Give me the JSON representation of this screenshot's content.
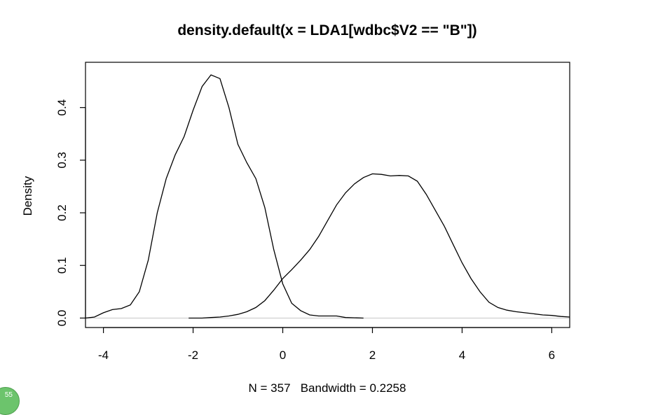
{
  "chart_data": {
    "type": "line",
    "title": "density.default(x = LDA1[wdbc$V2 == \"B\"])",
    "xlabel": "N = 357   Bandwidth = 0.2258",
    "ylabel": "Density",
    "xlim": [
      -4.4,
      6.4
    ],
    "ylim": [
      -0.018,
      0.486
    ],
    "x_ticks": [
      -4,
      -2,
      0,
      2,
      4,
      6
    ],
    "y_ticks": [
      0.0,
      0.1,
      0.2,
      0.3,
      0.4
    ],
    "x_tick_labels": [
      "-4",
      "-2",
      "0",
      "2",
      "4",
      "6"
    ],
    "y_tick_labels": [
      "0.0",
      "0.1",
      "0.2",
      "0.3",
      "0.4"
    ],
    "zero_line": true,
    "grid": false,
    "series": [
      {
        "x": [
          -4.4,
          -4.2,
          -4.0,
          -3.8,
          -3.6,
          -3.4,
          -3.2,
          -3.0,
          -2.8,
          -2.6,
          -2.4,
          -2.2,
          -2.0,
          -1.8,
          -1.6,
          -1.4,
          -1.2,
          -1.0,
          -0.8,
          -0.6,
          -0.4,
          -0.2,
          0.0,
          0.2,
          0.4,
          0.6,
          0.8,
          1.0,
          1.2,
          1.4,
          1.6,
          1.8
        ],
        "y": [
          0.0,
          0.002,
          0.01,
          0.016,
          0.018,
          0.025,
          0.05,
          0.11,
          0.2,
          0.265,
          0.31,
          0.345,
          0.395,
          0.44,
          0.462,
          0.455,
          0.4,
          0.33,
          0.295,
          0.265,
          0.21,
          0.13,
          0.065,
          0.028,
          0.014,
          0.006,
          0.004,
          0.004,
          0.004,
          0.001,
          0.0005,
          0.0
        ]
      },
      {
        "x": [
          -2.1,
          -1.8,
          -1.6,
          -1.4,
          -1.2,
          -1.0,
          -0.8,
          -0.6,
          -0.4,
          -0.2,
          0.0,
          0.2,
          0.4,
          0.6,
          0.8,
          1.0,
          1.2,
          1.4,
          1.6,
          1.8,
          2.0,
          2.2,
          2.4,
          2.6,
          2.8,
          3.0,
          3.2,
          3.4,
          3.6,
          3.8,
          4.0,
          4.2,
          4.4,
          4.6,
          4.8,
          5.0,
          5.2,
          5.4,
          5.6,
          5.8,
          6.0,
          6.2,
          6.4
        ],
        "y": [
          0.0,
          0.0,
          0.001,
          0.002,
          0.004,
          0.007,
          0.012,
          0.02,
          0.033,
          0.053,
          0.075,
          0.092,
          0.11,
          0.13,
          0.155,
          0.185,
          0.215,
          0.238,
          0.255,
          0.267,
          0.274,
          0.273,
          0.27,
          0.271,
          0.27,
          0.26,
          0.235,
          0.205,
          0.175,
          0.14,
          0.105,
          0.075,
          0.05,
          0.03,
          0.02,
          0.015,
          0.012,
          0.01,
          0.008,
          0.006,
          0.005,
          0.003,
          0.002
        ]
      }
    ]
  },
  "corner_badge": "55"
}
